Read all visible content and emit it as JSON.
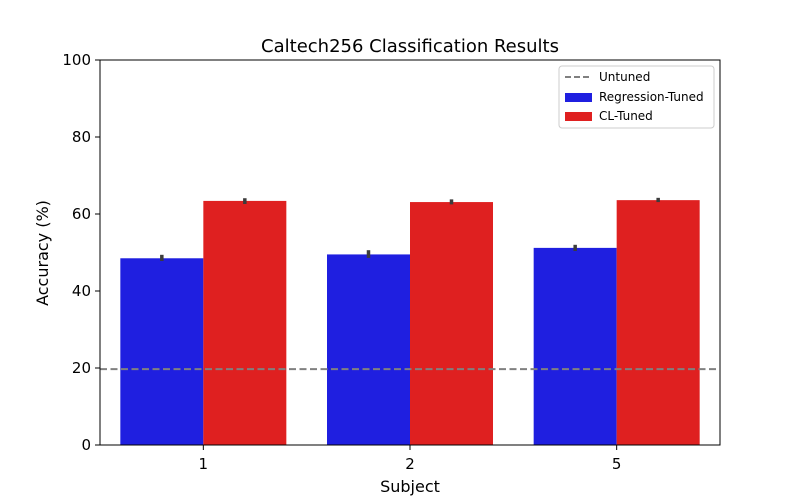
{
  "chart_data": {
    "type": "bar",
    "title": "Caltech256 Classification Results",
    "xlabel": "Subject",
    "ylabel": "Accuracy (%)",
    "categories": [
      "1",
      "2",
      "5"
    ],
    "ylim": [
      0,
      100
    ],
    "yticks": [
      "0",
      "20",
      "40",
      "60",
      "80",
      "100"
    ],
    "grid": false,
    "legend_position": "top-right",
    "series": [
      {
        "name": "Regression-Tuned",
        "color": "#1f1fe0",
        "values": [
          48.5,
          49.5,
          51.2
        ],
        "error_low": [
          47.8,
          48.6,
          50.4
        ],
        "error_high": [
          49.4,
          50.6,
          52.0
        ]
      },
      {
        "name": "CL-Tuned",
        "color": "#df2020",
        "values": [
          63.4,
          63.1,
          63.6
        ],
        "error_low": [
          62.6,
          62.5,
          63.1
        ],
        "error_high": [
          64.1,
          63.8,
          64.2
        ]
      }
    ],
    "reference_line": {
      "name": "Untuned",
      "value": 19.7,
      "color": "#808080",
      "style": "dashed"
    }
  }
}
